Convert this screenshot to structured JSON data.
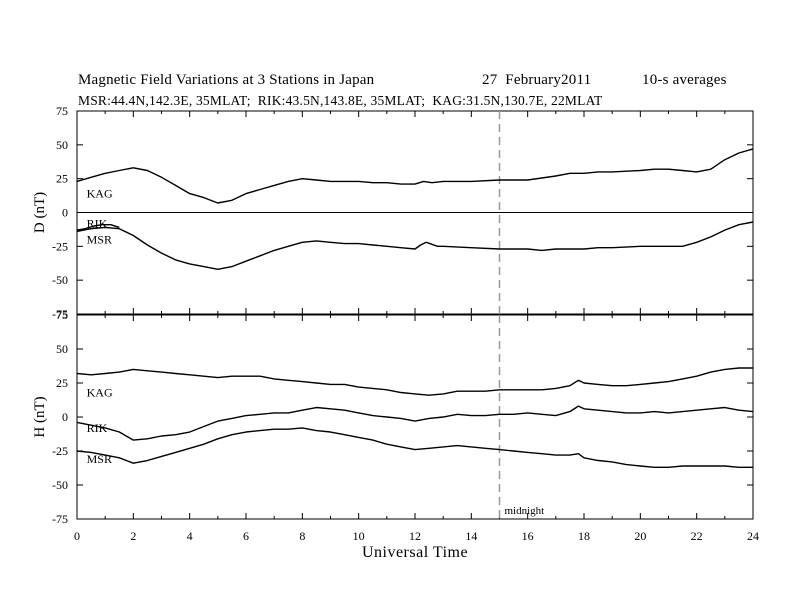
{
  "title": "Magnetic Field Variations at 3 Stations in Japan",
  "date_label": "27  February2011",
  "avg_label": "10-s averages",
  "subtitle": "MSR:44.4N,142.3E, 35MLAT;  RIK:43.5N,143.8E, 35MLAT;  KAG:31.5N,130.7E, 22MLAT",
  "midnight_label": "midnight",
  "chart_data": [
    {
      "type": "line",
      "panel": "top",
      "ylabel": "D (nT)",
      "xlabel": "",
      "xlim": [
        0,
        24
      ],
      "ylim": [
        -75,
        75
      ],
      "yticks": [
        75,
        50,
        25,
        0,
        -25,
        -50,
        -75
      ],
      "xticks": [
        0,
        2,
        4,
        6,
        8,
        10,
        12,
        14,
        16,
        18,
        20,
        22,
        24
      ],
      "zero_line": true,
      "midnight_ut": 15,
      "series": [
        {
          "name": "KAG",
          "label_pos": [
            0.2,
            14
          ],
          "x": [
            0,
            0.5,
            1,
            1.5,
            2,
            2.5,
            3,
            3.5,
            4,
            4.5,
            5,
            5.5,
            6,
            6.5,
            7,
            7.5,
            8,
            8.5,
            9,
            9.5,
            10,
            10.5,
            11,
            11.5,
            12,
            12.3,
            12.6,
            13,
            14,
            15,
            16,
            17,
            17.5,
            18,
            18.5,
            19,
            20,
            20.5,
            21,
            21.5,
            22,
            22.5,
            23,
            23.5,
            24
          ],
          "y": [
            23,
            26,
            29,
            31,
            33,
            31,
            26,
            20,
            14,
            11,
            7,
            9,
            14,
            17,
            20,
            23,
            25,
            24,
            23,
            23,
            23,
            22,
            22,
            21,
            21,
            23,
            22,
            23,
            23,
            24,
            24,
            27,
            29,
            29,
            30,
            30,
            31,
            32,
            32,
            31,
            30,
            32,
            39,
            44,
            47
          ]
        },
        {
          "name": "RIK",
          "label_pos": [
            0.2,
            -8
          ],
          "x": [
            0,
            0.3,
            0.6,
            0.9,
            1.2,
            1.5
          ],
          "y": [
            -13,
            -12,
            -10,
            -9,
            -9,
            -11
          ]
        },
        {
          "name": "MSR",
          "label_pos": [
            0.2,
            -20
          ],
          "x": [
            0,
            0.5,
            1,
            1.5,
            2,
            2.5,
            3,
            3.5,
            4,
            4.5,
            5,
            5.5,
            6,
            6.5,
            7,
            7.5,
            8,
            8.5,
            9,
            9.5,
            10,
            10.5,
            11,
            11.5,
            12,
            12.2,
            12.4,
            12.8,
            13,
            14,
            15,
            16,
            16.5,
            17,
            17.5,
            18,
            18.5,
            19,
            20,
            20.5,
            21,
            21.5,
            22,
            22.5,
            23,
            23.5,
            24
          ],
          "y": [
            -14,
            -12,
            -11,
            -12,
            -17,
            -24,
            -30,
            -35,
            -38,
            -40,
            -42,
            -40,
            -36,
            -32,
            -28,
            -25,
            -22,
            -21,
            -22,
            -23,
            -23,
            -24,
            -25,
            -26,
            -27,
            -24,
            -22,
            -25,
            -25,
            -26,
            -27,
            -27,
            -28,
            -27,
            -27,
            -27,
            -26,
            -26,
            -25,
            -25,
            -25,
            -25,
            -22,
            -18,
            -13,
            -9,
            -7
          ]
        }
      ]
    },
    {
      "type": "line",
      "panel": "bottom",
      "ylabel": "H (nT)",
      "xlabel": "Universal Time",
      "xlim": [
        0,
        24
      ],
      "ylim": [
        -75,
        75
      ],
      "yticks": [
        75,
        50,
        25,
        0,
        -25,
        -50,
        -75
      ],
      "xticks": [
        0,
        2,
        4,
        6,
        8,
        10,
        12,
        14,
        16,
        18,
        20,
        22,
        24
      ],
      "zero_line": false,
      "midnight_ut": 15,
      "series": [
        {
          "name": "KAG",
          "label_pos": [
            0.2,
            18
          ],
          "x": [
            0,
            0.5,
            1,
            1.5,
            2,
            2.5,
            3,
            3.5,
            4,
            4.5,
            5,
            5.5,
            6,
            6.5,
            7,
            7.5,
            8,
            8.5,
            9,
            9.5,
            10,
            10.5,
            11,
            11.5,
            12,
            12.5,
            13,
            13.5,
            14,
            14.5,
            15,
            15.5,
            16,
            16.5,
            17,
            17.5,
            17.8,
            18,
            18.5,
            19,
            19.5,
            20,
            20.5,
            21,
            21.5,
            22,
            22.5,
            23,
            23.5,
            24
          ],
          "y": [
            32,
            31,
            32,
            33,
            35,
            34,
            33,
            32,
            31,
            30,
            29,
            30,
            30,
            30,
            28,
            27,
            26,
            25,
            24,
            24,
            22,
            21,
            20,
            18,
            17,
            16,
            17,
            19,
            19,
            19,
            20,
            20,
            20,
            20,
            21,
            23,
            27,
            25,
            24,
            23,
            23,
            24,
            25,
            26,
            28,
            30,
            33,
            35,
            36,
            36
          ]
        },
        {
          "name": "RIK",
          "label_pos": [
            0.2,
            -8
          ],
          "x": [
            0,
            0.5,
            1,
            1.5,
            2,
            2.5,
            3,
            3.5,
            4,
            4.5,
            5,
            5.5,
            6,
            6.5,
            7,
            7.5,
            8,
            8.5,
            9,
            9.5,
            10,
            10.5,
            11,
            11.5,
            12,
            12.5,
            13,
            13.5,
            14,
            14.5,
            15,
            15.5,
            16,
            16.5,
            17,
            17.5,
            17.8,
            18,
            18.5,
            19,
            19.5,
            20,
            20.5,
            21,
            21.5,
            22,
            22.5,
            23,
            23.5,
            24
          ],
          "y": [
            -4,
            -6,
            -8,
            -11,
            -17,
            -16,
            -14,
            -13,
            -11,
            -7,
            -3,
            -1,
            1,
            2,
            3,
            3,
            5,
            7,
            6,
            5,
            3,
            1,
            0,
            -1,
            -3,
            -1,
            0,
            2,
            1,
            1,
            2,
            2,
            3,
            2,
            1,
            4,
            8,
            6,
            5,
            4,
            3,
            3,
            4,
            3,
            4,
            5,
            6,
            7,
            5,
            4
          ]
        },
        {
          "name": "MSR",
          "label_pos": [
            0.2,
            -31
          ],
          "x": [
            0,
            0.5,
            1,
            1.5,
            2,
            2.5,
            3,
            3.5,
            4,
            4.5,
            5,
            5.5,
            6,
            6.5,
            7,
            7.5,
            8,
            8.5,
            9,
            9.5,
            10,
            10.5,
            11,
            11.5,
            12,
            12.5,
            13,
            13.5,
            14,
            14.5,
            15,
            15.5,
            16,
            16.5,
            17,
            17.5,
            17.8,
            18,
            18.5,
            19,
            19.5,
            20,
            20.5,
            21,
            21.5,
            22,
            22.5,
            23,
            23.5,
            24
          ],
          "y": [
            -25,
            -26,
            -28,
            -30,
            -34,
            -32,
            -29,
            -26,
            -23,
            -20,
            -16,
            -13,
            -11,
            -10,
            -9,
            -9,
            -8,
            -10,
            -11,
            -13,
            -15,
            -17,
            -20,
            -22,
            -24,
            -23,
            -22,
            -21,
            -22,
            -23,
            -24,
            -25,
            -26,
            -27,
            -28,
            -28,
            -27,
            -30,
            -32,
            -33,
            -35,
            -36,
            -37,
            -37,
            -36,
            -36,
            -36,
            -36,
            -37,
            -37
          ]
        }
      ]
    }
  ]
}
